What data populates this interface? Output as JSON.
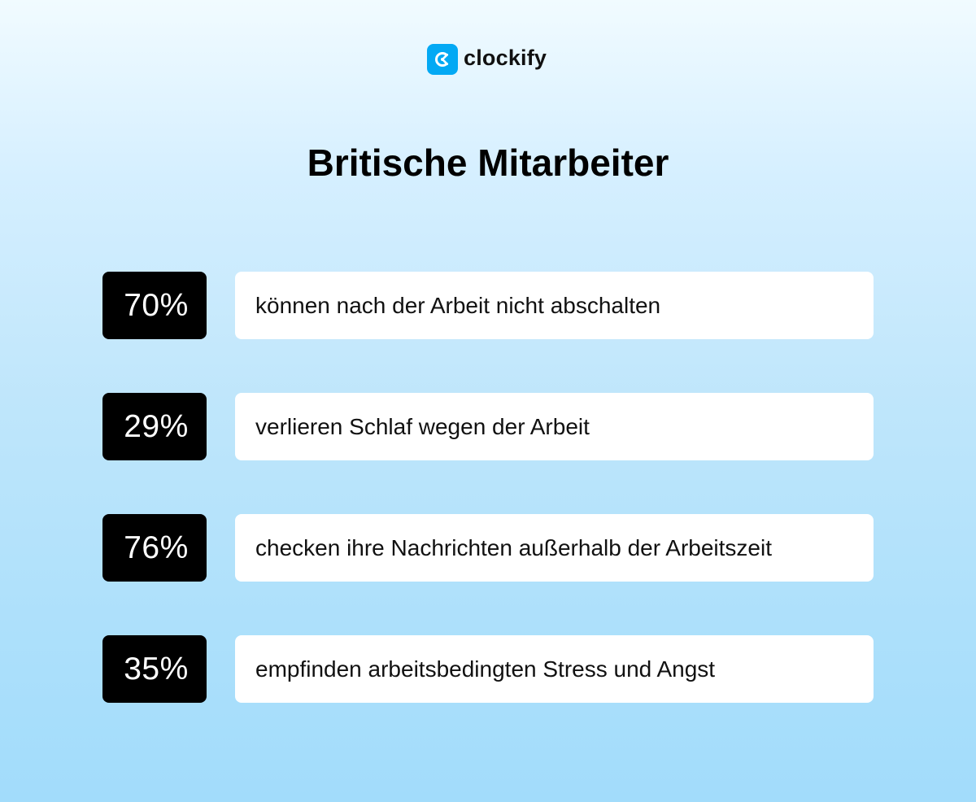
{
  "brand": {
    "name": "clockify",
    "icon": "clockify-logo-icon",
    "accent_color": "#03a9f4"
  },
  "title": "Britische Mitarbeiter",
  "stats": [
    {
      "value": "70%",
      "text": "können nach der Arbeit nicht abschalten"
    },
    {
      "value": "29%",
      "text": "verlieren Schlaf wegen der Arbeit"
    },
    {
      "value": "76%",
      "text": "checken ihre Nachrichten außerhalb der Arbeitszeit"
    },
    {
      "value": "35%",
      "text": "empfinden arbeitsbedingten Stress und Angst"
    }
  ],
  "colors": {
    "value_box": "#000000",
    "text_box": "#ffffff"
  }
}
